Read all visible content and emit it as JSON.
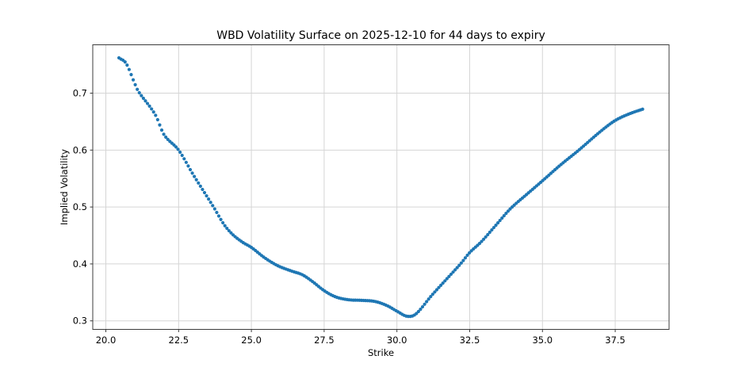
{
  "chart_data": {
    "type": "scatter",
    "title": "WBD Volatility Surface on 2025-12-10 for 44 days to expiry",
    "xlabel": "Strike",
    "ylabel": "Implied Volatility",
    "xlim": [
      19.55,
      39.35
    ],
    "ylim": [
      0.285,
      0.785
    ],
    "xticks": [
      20.0,
      22.5,
      25.0,
      27.5,
      30.0,
      32.5,
      35.0,
      37.5
    ],
    "xtick_labels": [
      "20.0",
      "22.5",
      "25.0",
      "27.5",
      "30.0",
      "32.5",
      "35.0",
      "37.5"
    ],
    "yticks": [
      0.3,
      0.4,
      0.5,
      0.6,
      0.7
    ],
    "ytick_labels": [
      "0.3",
      "0.4",
      "0.5",
      "0.6",
      "0.7"
    ],
    "grid": true,
    "legend": null,
    "marker_color": "#1f77b4",
    "grid_color": "#d5d5d5",
    "spine_color": "#3c3c3c",
    "series": [
      {
        "name": "implied-volatility-smile",
        "points": [
          [
            20.45,
            0.762
          ],
          [
            20.7,
            0.752
          ],
          [
            21.0,
            0.716
          ],
          [
            21.12,
            0.703
          ],
          [
            21.7,
            0.662
          ],
          [
            22.0,
            0.627
          ],
          [
            22.5,
            0.6
          ],
          [
            23.0,
            0.557
          ],
          [
            23.7,
            0.5
          ],
          [
            24.05,
            0.47
          ],
          [
            24.35,
            0.452
          ],
          [
            24.7,
            0.438
          ],
          [
            25.0,
            0.429
          ],
          [
            25.45,
            0.411
          ],
          [
            25.9,
            0.397
          ],
          [
            26.35,
            0.388
          ],
          [
            26.75,
            0.381
          ],
          [
            27.1,
            0.369
          ],
          [
            27.5,
            0.353
          ],
          [
            27.9,
            0.342
          ],
          [
            28.35,
            0.337
          ],
          [
            28.8,
            0.336
          ],
          [
            29.25,
            0.334
          ],
          [
            29.65,
            0.327
          ],
          [
            30.0,
            0.317
          ],
          [
            30.35,
            0.308
          ],
          [
            30.65,
            0.312
          ],
          [
            31.2,
            0.345
          ],
          [
            31.7,
            0.373
          ],
          [
            32.2,
            0.401
          ],
          [
            32.5,
            0.42
          ],
          [
            32.9,
            0.439
          ],
          [
            33.4,
            0.468
          ],
          [
            33.9,
            0.497
          ],
          [
            34.5,
            0.524
          ],
          [
            35.0,
            0.546
          ],
          [
            35.6,
            0.573
          ],
          [
            36.25,
            0.6
          ],
          [
            37.0,
            0.633
          ],
          [
            37.5,
            0.652
          ],
          [
            38.0,
            0.664
          ],
          [
            38.45,
            0.672
          ]
        ]
      }
    ]
  }
}
